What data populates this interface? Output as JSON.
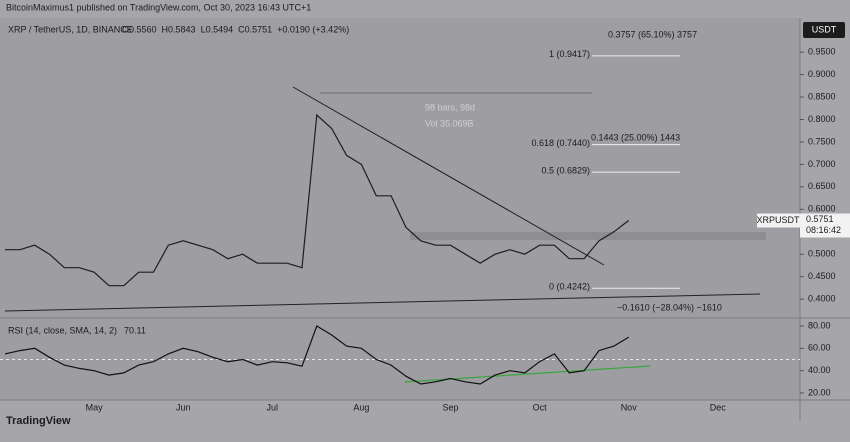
{
  "header": {
    "publisher": "BitcoinMaximus1 published on TradingView.com, Oct 30, 2023 16:43 UTC+1"
  },
  "chart_data": [
    {
      "type": "line",
      "title": "XRP / TetherUS, 1D, BINANCE",
      "legend_values": [
        "O0.5560",
        "H0.5843",
        "L0.5494",
        "C0.5751",
        "+0.0190 (+3.42%)"
      ],
      "currency": "USDT",
      "countdown": "08:16:42",
      "last_price_label": "0.5751",
      "categories": [
        null,
        null,
        null,
        null,
        null,
        null,
        "May",
        null,
        null,
        null,
        null,
        null,
        "Jun",
        null,
        null,
        null,
        null,
        null,
        "Jul",
        null,
        null,
        null,
        null,
        null,
        "Aug",
        null,
        null,
        null,
        null,
        null,
        "Sep",
        null,
        null,
        null,
        null,
        null,
        "Oct",
        null,
        null,
        null,
        null,
        null,
        "Nov",
        null,
        null,
        null,
        null,
        null,
        "Dec",
        null,
        null,
        null,
        null,
        null
      ],
      "series": [
        {
          "name": "XRPUSDT",
          "color": "#1e1e22",
          "values": [
            0.51,
            0.51,
            0.52,
            0.5,
            0.47,
            0.47,
            0.46,
            0.43,
            0.43,
            0.46,
            0.46,
            0.52,
            0.53,
            0.52,
            0.51,
            0.49,
            0.5,
            0.48,
            0.48,
            0.48,
            0.47,
            0.81,
            0.78,
            0.72,
            0.7,
            0.63,
            0.63,
            0.56,
            0.53,
            0.52,
            0.52,
            0.5,
            0.48,
            0.5,
            0.51,
            0.5,
            0.52,
            0.52,
            0.49,
            0.49,
            0.53,
            0.55,
            0.5751,
            null,
            null,
            null,
            null,
            null,
            null,
            null,
            null,
            null,
            null,
            null
          ]
        }
      ],
      "ylim": [
        0.358,
        1.026
      ],
      "yticks": [
        {
          "value": 0.4,
          "label": "0.4000"
        },
        {
          "value": 0.45,
          "label": "0.4500"
        },
        {
          "value": 0.5,
          "label": "0.5000"
        },
        {
          "value": 0.55,
          "label": "0.5500"
        },
        {
          "value": 0.6,
          "label": "0.6000"
        },
        {
          "value": 0.65,
          "label": "0.6500"
        },
        {
          "value": 0.7,
          "label": "0.7000"
        },
        {
          "value": 0.75,
          "label": "0.7500"
        },
        {
          "value": 0.8,
          "label": "0.8000"
        },
        {
          "value": 0.85,
          "label": "0.8500"
        },
        {
          "value": 0.9,
          "label": "0.9000"
        },
        {
          "value": 0.95,
          "label": "0.9500"
        }
      ],
      "fib_levels": [
        {
          "value": 0.9417,
          "label": "1 (0.9417)"
        },
        {
          "value": 0.744,
          "label": "0.618 (0.7440)"
        },
        {
          "value": 0.6829,
          "label": "0.5 (0.6829)"
        },
        {
          "value": 0.4242,
          "label": "0 (0.4242)"
        }
      ],
      "annotations": [
        "0.3757 (65.10%) 3757",
        "0.1443 (25.00%) 1443",
        "−0.1610 (−28.04%) −1610",
        "98 bars, 98d",
        "Vol 35.069B"
      ]
    },
    {
      "type": "line",
      "title": "RSI (14, close, SMA, 14, 2)",
      "series": [
        {
          "name": "RSI",
          "color": "#111111",
          "values": [
            55,
            58,
            60,
            52,
            45,
            42,
            40,
            36,
            38,
            45,
            48,
            55,
            60,
            57,
            52,
            48,
            50,
            45,
            48,
            47,
            44,
            80,
            72,
            62,
            60,
            50,
            45,
            35,
            28,
            30,
            33,
            30,
            28,
            36,
            40,
            38,
            48,
            55,
            38,
            40,
            58,
            62,
            70.11,
            null,
            null,
            null,
            null,
            null,
            null,
            null,
            null,
            null,
            null,
            null
          ]
        }
      ],
      "ylim": [
        13.7,
        87.2
      ],
      "yticks": [
        {
          "value": 20,
          "label": "20.00"
        },
        {
          "value": 40,
          "label": "40.00"
        },
        {
          "value": 60,
          "label": "60.00"
        },
        {
          "value": 80,
          "label": "80.00"
        }
      ]
    }
  ],
  "footer": {
    "brand": "TradingView"
  }
}
